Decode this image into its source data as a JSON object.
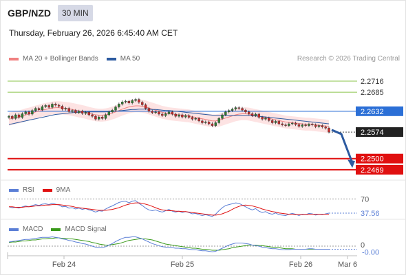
{
  "header": {
    "pair": "GBP/NZD",
    "timeframe": "30 MIN",
    "datetime": "Thursday, February 26, 2026 6:45:40 AM CET"
  },
  "legend": {
    "ma20": {
      "label": "MA 20 + Bollinger Bands",
      "color": "#f08080"
    },
    "ma50": {
      "label": "MA 50",
      "color": "#2c5aa0"
    }
  },
  "credit": "Research © 2026 Trading Central",
  "rsi_legend": {
    "rsi": {
      "label": "RSI",
      "color": "#5b7fd6"
    },
    "ma9": {
      "label": "9MA",
      "color": "#e01010"
    }
  },
  "macd_legend": {
    "macd": {
      "label": "MACD",
      "color": "#5b7fd6"
    },
    "signal": {
      "label": "MACD Signal",
      "color": "#3a9a1a"
    }
  },
  "chart_data": {
    "type": "candlestick",
    "x_tick_labels": [
      "Feb 24",
      "Feb 25",
      "Feb 26",
      "Mar 6"
    ],
    "price_ylim": [
      2.244,
      2.276
    ],
    "price_levels": [
      {
        "value": 2.2716,
        "label": "2.2716",
        "kind": "resistance",
        "color": "#8bc34a"
      },
      {
        "value": 2.2685,
        "label": "2.2685",
        "kind": "resistance",
        "color": "#8bc34a"
      },
      {
        "value": 2.2632,
        "label": "2.2632",
        "kind": "pivot",
        "color": "#2b6fd6"
      },
      {
        "value": 2.2574,
        "label": "2.2574",
        "kind": "last",
        "color": "#222222"
      },
      {
        "value": 2.25,
        "label": "2.2500",
        "kind": "target",
        "color": "#e01010"
      },
      {
        "value": 2.2469,
        "label": "2.2469",
        "kind": "target",
        "color": "#e01010"
      }
    ],
    "forecast_arrow": {
      "from": 2.258,
      "to": 2.2478
    },
    "close": [
      2.2618,
      2.2612,
      2.2622,
      2.2615,
      2.2625,
      2.263,
      2.2624,
      2.2634,
      2.264,
      2.2636,
      2.2645,
      2.2648,
      2.2643,
      2.2652,
      2.2649,
      2.2646,
      2.2638,
      2.264,
      2.2631,
      2.2634,
      2.2628,
      2.2632,
      2.2626,
      2.2629,
      2.2622,
      2.2618,
      2.261,
      2.2616,
      2.2612,
      2.2622,
      2.263,
      2.2635,
      2.2644,
      2.2652,
      2.2658,
      2.266,
      2.2655,
      2.2662,
      2.2665,
      2.2657,
      2.265,
      2.264,
      2.2632,
      2.2628,
      2.263,
      2.2624,
      2.262,
      2.2625,
      2.263,
      2.2624,
      2.2618,
      2.2622,
      2.2616,
      2.262,
      2.2615,
      2.261,
      2.2612,
      2.2605,
      2.26,
      2.2602,
      2.2597,
      2.2592,
      2.26,
      2.2612,
      2.2622,
      2.263,
      2.2634,
      2.2638,
      2.2642,
      2.264,
      2.2635,
      2.263,
      2.2625,
      2.262,
      2.2624,
      2.2615,
      2.261,
      2.2613,
      2.2606,
      2.26,
      2.2604,
      2.2597,
      2.2594,
      2.2592,
      2.2597,
      2.2599,
      2.2595,
      2.259,
      2.2594,
      2.2592,
      2.2596,
      2.2594,
      2.2589,
      2.2592,
      2.2588,
      2.2585,
      2.2574
    ],
    "ma20": [
      2.261,
      2.2612,
      2.2614,
      2.2616,
      2.2619,
      2.2622,
      2.2624,
      2.2627,
      2.263,
      2.2632,
      2.2635,
      2.2637,
      2.2639,
      2.2641,
      2.2642,
      2.2642,
      2.2641,
      2.264,
      2.2639,
      2.2637,
      2.2635,
      2.2633,
      2.2631,
      2.2629,
      2.2626,
      2.2624,
      2.2622,
      2.2621,
      2.2621,
      2.2622,
      2.2624,
      2.2627,
      2.263,
      2.2634,
      2.2638,
      2.2641,
      2.2644,
      2.2646,
      2.2647,
      2.2647,
      2.2646,
      2.2644,
      2.2641,
      2.2638,
      2.2635,
      2.2632,
      2.2629,
      2.2627,
      2.2625,
      2.2624,
      2.2623,
      2.2622,
      2.2621,
      2.262,
      2.2619,
      2.2617,
      2.2615,
      2.2613,
      2.2611,
      2.2609,
      2.2607,
      2.2605,
      2.2605,
      2.2607,
      2.261,
      2.2613,
      2.2616,
      2.2619,
      2.2622,
      2.2624,
      2.2625,
      2.2625,
      2.2624,
      2.2622,
      2.262,
      2.2618,
      2.2616,
      2.2614,
      2.2612,
      2.261,
      2.2608,
      2.2606,
      2.2604,
      2.2602,
      2.2601,
      2.26,
      2.2599,
      2.2598,
      2.2597,
      2.2596,
      2.2596,
      2.2595,
      2.2594,
      2.2593,
      2.2592,
      2.2591,
      2.2589
    ],
    "ma50": [
      2.2595,
      2.2597,
      2.2599,
      2.2601,
      2.2603,
      2.2605,
      2.2607,
      2.2609,
      2.2611,
      2.2613,
      2.2615,
      2.2617,
      2.2619,
      2.2621,
      2.2623,
      2.2624,
      2.2625,
      2.2626,
      2.2627,
      2.2628,
      2.2629,
      2.2629,
      2.263,
      2.263,
      2.263,
      2.263,
      2.263,
      2.263,
      2.263,
      2.263,
      2.2631,
      2.2631,
      2.2632,
      2.2633,
      2.2634,
      2.2635,
      2.2636,
      2.2637,
      2.2637,
      2.2638,
      2.2638,
      2.2638,
      2.2638,
      2.2637,
      2.2637,
      2.2636,
      2.2635,
      2.2634,
      2.2634,
      2.2633,
      2.2632,
      2.2631,
      2.263,
      2.2629,
      2.2628,
      2.2627,
      2.2626,
      2.2625,
      2.2624,
      2.2623,
      2.2622,
      2.2621,
      2.262,
      2.262,
      2.262,
      2.262,
      2.262,
      2.262,
      2.262,
      2.262,
      2.262,
      2.262,
      2.262,
      2.2619,
      2.2619,
      2.2618,
      2.2617,
      2.2616,
      2.2615,
      2.2614,
      2.2613,
      2.2612,
      2.2611,
      2.261,
      2.2609,
      2.2608,
      2.2607,
      2.2606,
      2.2605,
      2.2604,
      2.2603,
      2.2602,
      2.2601,
      2.26,
      2.2599,
      2.2598,
      2.2597
    ],
    "rsi": {
      "ylim": [
        25,
        80
      ],
      "levels": [
        {
          "value": 70,
          "label": "70"
        }
      ],
      "last_label": "37.56",
      "rsi": [
        52,
        50,
        51,
        49,
        52,
        54,
        52,
        55,
        57,
        55,
        58,
        59,
        57,
        60,
        58,
        56,
        52,
        53,
        49,
        50,
        47,
        49,
        46,
        48,
        45,
        43,
        40,
        43,
        42,
        47,
        51,
        54,
        58,
        62,
        64,
        65,
        61,
        65,
        66,
        60,
        55,
        49,
        45,
        43,
        45,
        42,
        40,
        43,
        46,
        42,
        40,
        42,
        39,
        41,
        39,
        36,
        37,
        34,
        32,
        34,
        32,
        30,
        35,
        43,
        50,
        55,
        57,
        59,
        61,
        60,
        56,
        52,
        48,
        45,
        48,
        42,
        39,
        41,
        37,
        35,
        38,
        34,
        33,
        32,
        35,
        37,
        35,
        32,
        35,
        34,
        37,
        36,
        33,
        35,
        34,
        36,
        37.56
      ],
      "ma9": [
        52,
        52,
        51,
        51,
        51,
        52,
        52,
        53,
        54,
        54,
        55,
        56,
        56,
        57,
        57,
        57,
        56,
        55,
        54,
        53,
        51,
        50,
        49,
        48,
        47,
        46,
        45,
        44,
        44,
        44,
        45,
        46,
        48,
        50,
        53,
        56,
        58,
        60,
        61,
        61,
        60,
        58,
        56,
        53,
        50,
        47,
        45,
        44,
        43,
        43,
        42,
        42,
        41,
        41,
        40,
        39,
        38,
        37,
        36,
        35,
        34,
        33,
        33,
        34,
        36,
        39,
        42,
        46,
        50,
        53,
        55,
        56,
        55,
        54,
        52,
        50,
        47,
        45,
        43,
        41,
        40,
        38,
        37,
        36,
        35,
        35,
        34,
        34,
        34,
        34,
        35,
        35,
        35,
        35,
        35,
        35,
        35
      ]
    },
    "macd": {
      "ylim": [
        -0.0016,
        0.0024
      ],
      "levels": [
        {
          "value": 0,
          "label": "0"
        }
      ],
      "last_label": "-0.00",
      "macd": [
        0.0008,
        0.0009,
        0.001,
        0.0011,
        0.0012,
        0.0013,
        0.0013,
        0.0014,
        0.0015,
        0.0016,
        0.0017,
        0.0017,
        0.0017,
        0.0018,
        0.0017,
        0.0016,
        0.0014,
        0.0013,
        0.0011,
        0.001,
        0.0008,
        0.0007,
        0.0005,
        0.0004,
        0.0002,
        0.0,
        -0.0002,
        -0.0003,
        -0.0003,
        -0.0001,
        0.0002,
        0.0005,
        0.0009,
        0.0012,
        0.0015,
        0.0017,
        0.0017,
        0.0018,
        0.0018,
        0.0016,
        0.0014,
        0.0011,
        0.0008,
        0.0005,
        0.0003,
        0.0001,
        -0.0001,
        -0.0002,
        -0.0002,
        -0.0003,
        -0.0004,
        -0.0004,
        -0.0005,
        -0.0005,
        -0.0006,
        -0.0007,
        -0.0007,
        -0.0008,
        -0.0009,
        -0.0009,
        -0.001,
        -0.0011,
        -0.001,
        -0.0007,
        -0.0004,
        -0.0001,
        0.0002,
        0.0004,
        0.0006,
        0.0006,
        0.0006,
        0.0005,
        0.0004,
        0.0002,
        0.0001,
        0.0,
        -0.0002,
        -0.0003,
        -0.0004,
        -0.0005,
        -0.0005,
        -0.0006,
        -0.0007,
        -0.0007,
        -0.0007,
        -0.0006,
        -0.0006,
        -0.0006,
        -0.0006,
        -0.0006,
        -0.0005,
        -0.0005,
        -0.0006,
        -0.0006,
        -0.0006,
        -0.0006,
        -0.0006
      ],
      "signal": [
        0.0007,
        0.0008,
        0.0008,
        0.0009,
        0.001,
        0.001,
        0.0011,
        0.0012,
        0.0012,
        0.0013,
        0.0014,
        0.0014,
        0.0015,
        0.0015,
        0.0016,
        0.0016,
        0.0015,
        0.0015,
        0.0014,
        0.0014,
        0.0013,
        0.0012,
        0.0011,
        0.001,
        0.0009,
        0.0007,
        0.0006,
        0.0004,
        0.0003,
        0.0002,
        0.0002,
        0.0003,
        0.0004,
        0.0005,
        0.0007,
        0.0009,
        0.0011,
        0.0012,
        0.0013,
        0.0014,
        0.0014,
        0.0014,
        0.0013,
        0.0012,
        0.001,
        0.0008,
        0.0006,
        0.0004,
        0.0003,
        0.0002,
        0.0001,
        0.0,
        -0.0001,
        -0.0002,
        -0.0003,
        -0.0004,
        -0.0004,
        -0.0005,
        -0.0006,
        -0.0006,
        -0.0007,
        -0.0008,
        -0.0008,
        -0.0008,
        -0.0007,
        -0.0006,
        -0.0005,
        -0.0003,
        -0.0002,
        -0.0001,
        0.0,
        0.0001,
        0.0002,
        0.0002,
        0.0002,
        0.0001,
        0.0001,
        0.0,
        -0.0001,
        -0.0002,
        -0.0003,
        -0.0003,
        -0.0004,
        -0.0005,
        -0.0005,
        -0.0005,
        -0.0006,
        -0.0006,
        -0.0006,
        -0.0006,
        -0.0006,
        -0.0006,
        -0.0006,
        -0.0006,
        -0.0006,
        -0.0006,
        -0.0006
      ]
    }
  }
}
